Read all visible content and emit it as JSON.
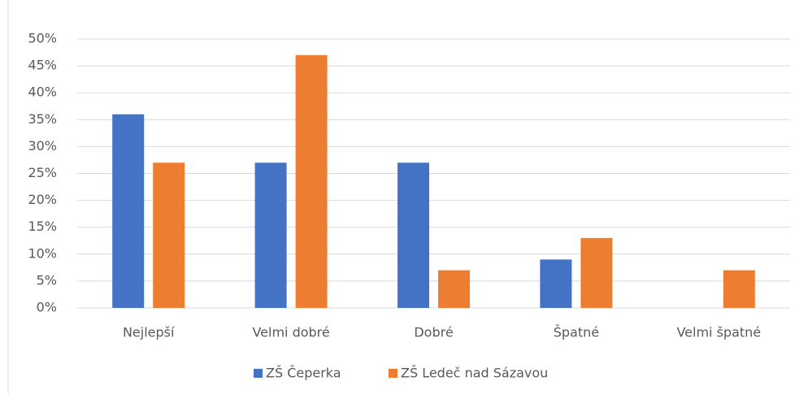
{
  "chart_data": {
    "type": "bar",
    "categories": [
      "Nejlepší",
      "Velmi dobré",
      "Dobré",
      "Špatné",
      "Velmi špatné"
    ],
    "series": [
      {
        "name": "ZŠ Čeperka",
        "color": "#4472c4",
        "values": [
          36,
          27,
          27,
          9,
          0
        ]
      },
      {
        "name": "ZŠ Ledeč nad Sázavou",
        "color": "#ed7d31",
        "values": [
          27,
          47,
          7,
          13,
          7
        ]
      }
    ],
    "ylim": [
      0,
      50
    ],
    "yticks": [
      {
        "value": 0,
        "label": "0%"
      },
      {
        "value": 5,
        "label": "5%"
      },
      {
        "value": 10,
        "label": "10%"
      },
      {
        "value": 15,
        "label": "15%"
      },
      {
        "value": 20,
        "label": "20%"
      },
      {
        "value": 25,
        "label": "25%"
      },
      {
        "value": 30,
        "label": "30%"
      },
      {
        "value": 35,
        "label": "35%"
      },
      {
        "value": 40,
        "label": "40%"
      },
      {
        "value": 45,
        "label": "45%"
      },
      {
        "value": 50,
        "label": "50%"
      }
    ],
    "grid": true,
    "legend": "bottom"
  }
}
